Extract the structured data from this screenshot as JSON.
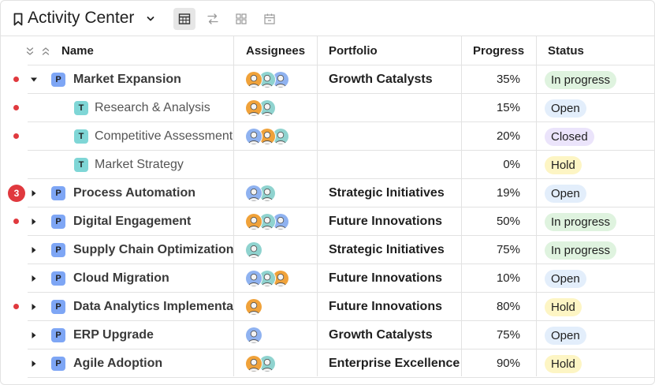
{
  "header": {
    "title": "Activity Center",
    "views": [
      {
        "name": "table-view",
        "active": true
      },
      {
        "name": "timeline-view",
        "active": false
      },
      {
        "name": "board-view",
        "active": false
      },
      {
        "name": "calendar-view",
        "active": false
      }
    ]
  },
  "columns": {
    "name": "Name",
    "assignees": "Assignees",
    "portfolio": "Portfolio",
    "progress": "Progress",
    "status": "Status"
  },
  "rows": [
    {
      "name": "Market Expansion",
      "type": "P",
      "level": "parent",
      "expanded": true,
      "indicator": "dot",
      "avatars": [
        "orange",
        "teal",
        "blue"
      ],
      "portfolio": "Growth Catalysts",
      "progress": "35%",
      "status": "In progress",
      "status_kind": "inprogress"
    },
    {
      "name": "Research & Analysis",
      "type": "T",
      "level": "child",
      "indicator": "dot",
      "avatars": [
        "orange",
        "teal"
      ],
      "portfolio": "",
      "progress": "15%",
      "status": "Open",
      "status_kind": "open"
    },
    {
      "name": "Competitive Assessment",
      "type": "T",
      "level": "child",
      "indicator": "dot",
      "avatars": [
        "blue",
        "orange",
        "teal"
      ],
      "portfolio": "",
      "progress": "20%",
      "status": "Closed",
      "status_kind": "closed"
    },
    {
      "name": "Market Strategy",
      "type": "T",
      "level": "child",
      "indicator": "none",
      "avatars": [],
      "portfolio": "",
      "progress": "0%",
      "status": "Hold",
      "status_kind": "hold"
    },
    {
      "name": "Process Automation",
      "type": "P",
      "level": "parent",
      "expanded": false,
      "indicator": "count",
      "count": "3",
      "avatars": [
        "blue",
        "teal"
      ],
      "portfolio": "Strategic Initiatives",
      "progress": "19%",
      "status": "Open",
      "status_kind": "open"
    },
    {
      "name": "Digital Engagement",
      "type": "P",
      "level": "parent",
      "expanded": false,
      "indicator": "dot",
      "avatars": [
        "orange",
        "teal",
        "blue"
      ],
      "portfolio": "Future Innovations",
      "progress": "50%",
      "status": "In progress",
      "status_kind": "inprogress"
    },
    {
      "name": "Supply Chain Optimization",
      "type": "P",
      "level": "parent",
      "expanded": false,
      "indicator": "none",
      "avatars": [
        "teal"
      ],
      "portfolio": "Strategic Initiatives",
      "progress": "75%",
      "status": "In progress",
      "status_kind": "inprogress"
    },
    {
      "name": "Cloud Migration",
      "type": "P",
      "level": "parent",
      "expanded": false,
      "indicator": "none",
      "avatars": [
        "blue",
        "teal",
        "orange"
      ],
      "portfolio": "Future Innovations",
      "progress": "10%",
      "status": "Open",
      "status_kind": "open"
    },
    {
      "name": "Data Analytics Implementa",
      "type": "P",
      "level": "parent",
      "expanded": false,
      "indicator": "dot",
      "avatars": [
        "orange"
      ],
      "portfolio": "Future Innovations",
      "progress": "80%",
      "status": "Hold",
      "status_kind": "hold"
    },
    {
      "name": "ERP Upgrade",
      "type": "P",
      "level": "parent",
      "expanded": false,
      "indicator": "none",
      "avatars": [
        "blue"
      ],
      "portfolio": "Growth Catalysts",
      "progress": "75%",
      "status": "Open",
      "status_kind": "open"
    },
    {
      "name": "Agile Adoption",
      "type": "P",
      "level": "parent",
      "expanded": false,
      "indicator": "none",
      "avatars": [
        "orange",
        "teal"
      ],
      "portfolio": "Enterprise Excellence",
      "progress": "90%",
      "status": "Hold",
      "status_kind": "hold"
    }
  ],
  "colors": {
    "indicator": "#e0393e",
    "avatar_orange": "#f0a23a",
    "avatar_teal": "#8fd3cf",
    "avatar_blue": "#8fb2f0"
  }
}
